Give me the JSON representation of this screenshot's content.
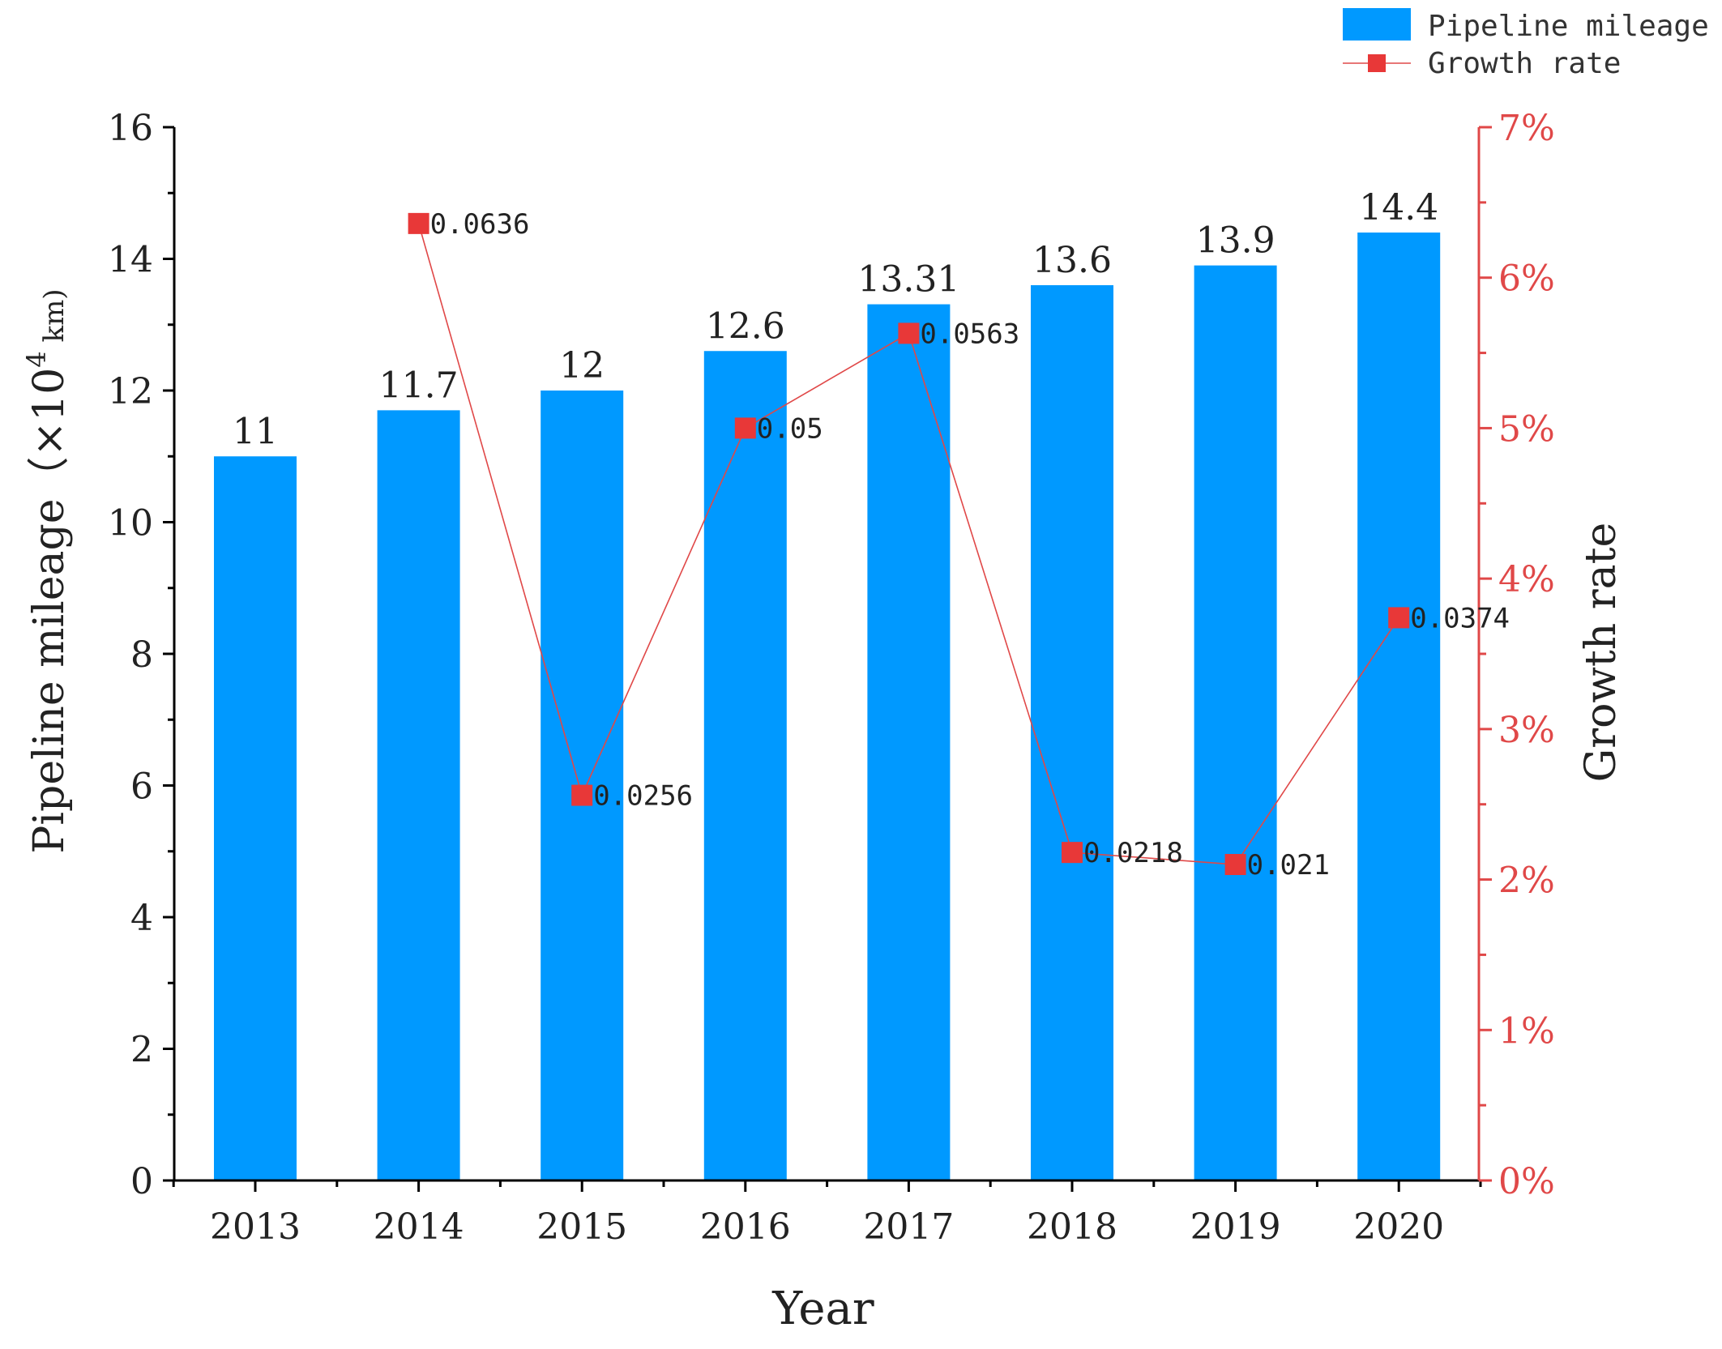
{
  "chart_data": {
    "type": "bar",
    "categories": [
      "2013",
      "2014",
      "2015",
      "2016",
      "2017",
      "2018",
      "2019",
      "2020"
    ],
    "series": [
      {
        "name": "Pipeline mileage",
        "axis": "left",
        "type": "bar",
        "values": [
          11,
          11.7,
          12,
          12.6,
          13.31,
          13.6,
          13.9,
          14.4
        ],
        "value_labels": [
          "11",
          "11.7",
          "12",
          "12.6",
          "13.31",
          "13.6",
          "13.9",
          "14.4"
        ]
      },
      {
        "name": "Growth rate",
        "axis": "right",
        "type": "line",
        "x": [
          "2014",
          "2015",
          "2016",
          "2017",
          "2018",
          "2019",
          "2020"
        ],
        "values": [
          0.0636,
          0.0256,
          0.05,
          0.0563,
          0.0218,
          0.021,
          0.0374
        ],
        "value_labels": [
          "0.0636",
          "0.0256",
          "0.05",
          "0.0563",
          "0.0218",
          "0.021",
          "0.0374"
        ]
      }
    ],
    "xlabel": "Year",
    "ylabel_left_text": "Pipeline mileage（×10",
    "ylabel_left_sup": "4",
    "ylabel_left_unit": " km)",
    "ylabel_right": "Growth rate",
    "ylim_left": [
      0,
      16
    ],
    "ylim_right": [
      0,
      0.07
    ],
    "yticks_left": [
      "0",
      "2",
      "4",
      "6",
      "8",
      "10",
      "12",
      "14",
      "16"
    ],
    "yticks_right": [
      "0%",
      "1%",
      "2%",
      "3%",
      "4%",
      "5%",
      "6%",
      "7%"
    ],
    "legend": {
      "placement": "top-right",
      "items": [
        "Pipeline mileage",
        "Growth rate"
      ]
    },
    "grid": false,
    "colors": {
      "bar": "#0099ff",
      "line": "#e04848",
      "marker": "#e83838",
      "right_axis": "#e04848",
      "axis": "#000000"
    }
  }
}
